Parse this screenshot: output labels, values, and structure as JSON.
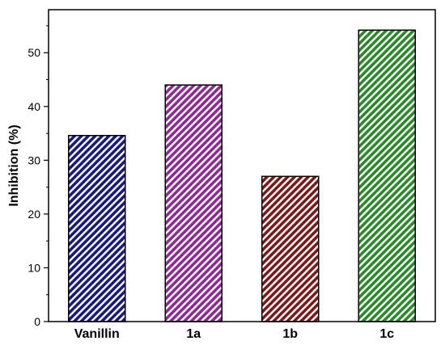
{
  "chart_data": {
    "type": "bar",
    "title": "",
    "xlabel": "",
    "ylabel": "Inhibition (%)",
    "categories": [
      "Vanillin",
      "1a",
      "1b",
      "1c"
    ],
    "values": [
      34.6,
      44.0,
      27.0,
      54.2
    ],
    "ylim": [
      0,
      58
    ],
    "yticks": [
      0,
      10,
      20,
      30,
      40,
      50
    ],
    "yticks_labels": [
      "0",
      "10",
      "20",
      "30",
      "40",
      "50"
    ],
    "grid": false,
    "legend": "none",
    "bar_colors": [
      "#1a1a7a",
      "#8e2a94",
      "#7a1a1a",
      "#2a8a2a"
    ],
    "hatch": "diagonal-white-stripes"
  }
}
